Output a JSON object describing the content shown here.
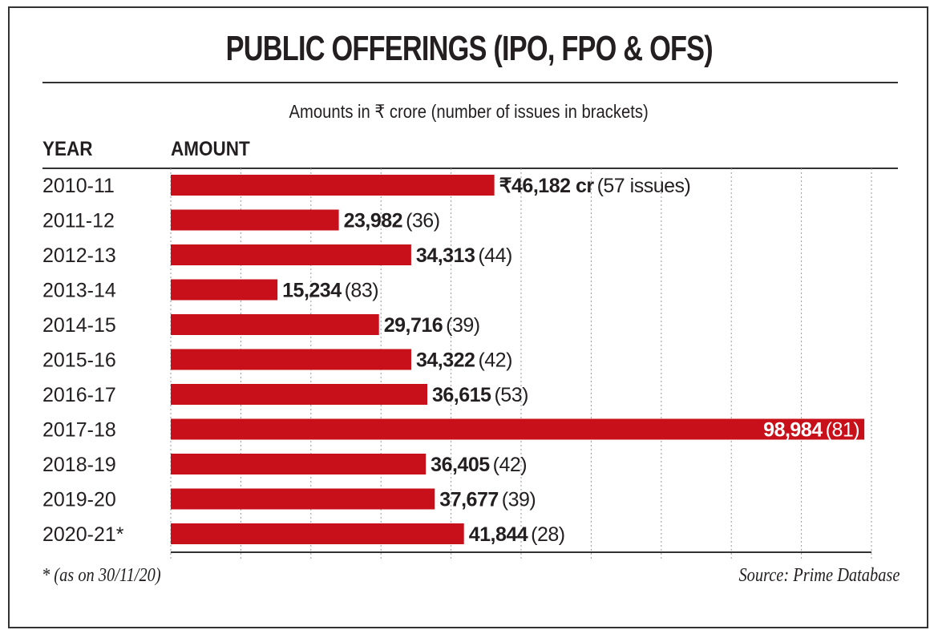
{
  "chart_data": {
    "type": "bar",
    "orientation": "horizontal",
    "title": "PUBLIC OFFERINGS (IPO, FPO & OFS)",
    "subtitle": "Amounts in ₹ crore (number of issues in brackets)",
    "category_header": "YEAR",
    "value_header": "AMOUNT",
    "categories": [
      "2010-11",
      "2011-12",
      "2012-13",
      "2013-14",
      "2014-15",
      "2015-16",
      "2016-17",
      "2017-18",
      "2018-19",
      "2019-20",
      "2020-21*"
    ],
    "values": [
      46182,
      23982,
      34313,
      15234,
      29716,
      34322,
      36615,
      98984,
      36405,
      37677,
      41844
    ],
    "issues": [
      57,
      36,
      44,
      83,
      39,
      42,
      53,
      81,
      42,
      39,
      28
    ],
    "value_labels": [
      "₹46,182 cr",
      "23,982",
      "34,313",
      "15,234",
      "29,716",
      "34,322",
      "36,615",
      "98,984",
      "36,405",
      "37,677",
      "41,844"
    ],
    "issue_labels": [
      "(57 issues)",
      "(36)",
      "(44)",
      "(83)",
      "(39)",
      "(42)",
      "(53)",
      "(81)",
      "(42)",
      "(39)",
      "(28)"
    ],
    "xlim": [
      0,
      100000
    ],
    "grid_step": 10000,
    "grid": true,
    "bar_color": "#c8101a",
    "footnote": "* (as on 30/11/20)",
    "source": "Source: Prime Database"
  }
}
